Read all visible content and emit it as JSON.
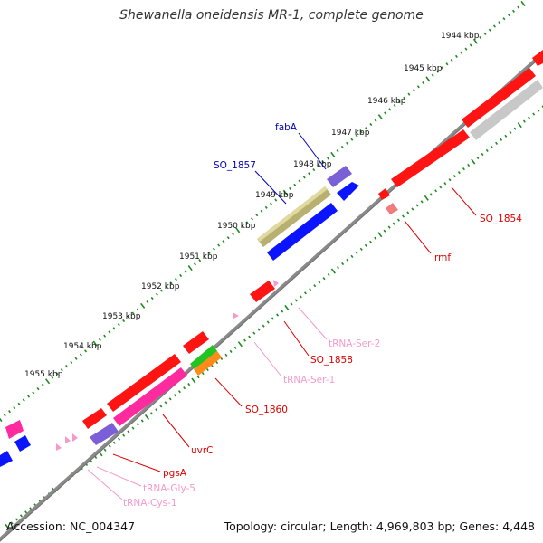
{
  "title": "Shewanella oneidensis MR-1, complete genome",
  "footer": {
    "accession": "Accession: NC_004347",
    "summary": "Topology: circular; Length: 4,969,803 bp; Genes: 4,448"
  },
  "colors": {
    "backbone": "#8a8a8a",
    "ticks": "#1f8a1f",
    "red": "#ff1414",
    "blue": "#0a14ff",
    "purple": "#7a5fd6",
    "olive": "#b8b070",
    "pink": "#ff2a9e",
    "gray": "#c8c8c8",
    "green": "#22c422",
    "orange": "#ff8c1a",
    "trna": "#f49acb"
  },
  "kbp_labels": [
    "1944 kbp",
    "1945 kbp",
    "1946 kbp",
    "1947 kbp",
    "1948 kbp",
    "1949 kbp",
    "1950 kbp",
    "1951 kbp",
    "1952 kbp",
    "1953 kbp",
    "1954 kbp",
    "1955 kbp"
  ],
  "gene_labels": {
    "fabA": "fabA",
    "so1857": "SO_1857",
    "so1854": "SO_1854",
    "rmf": "rmf",
    "trnaSer2": "tRNA-Ser-2",
    "so1858": "SO_1858",
    "trnaSer1": "tRNA-Ser-1",
    "so1860": "SO_1860",
    "uvrC": "uvrC",
    "pgsA": "pgsA",
    "trnaGly5": "tRNA-Gly-5",
    "trnaCys1": "tRNA-Cys-1"
  }
}
